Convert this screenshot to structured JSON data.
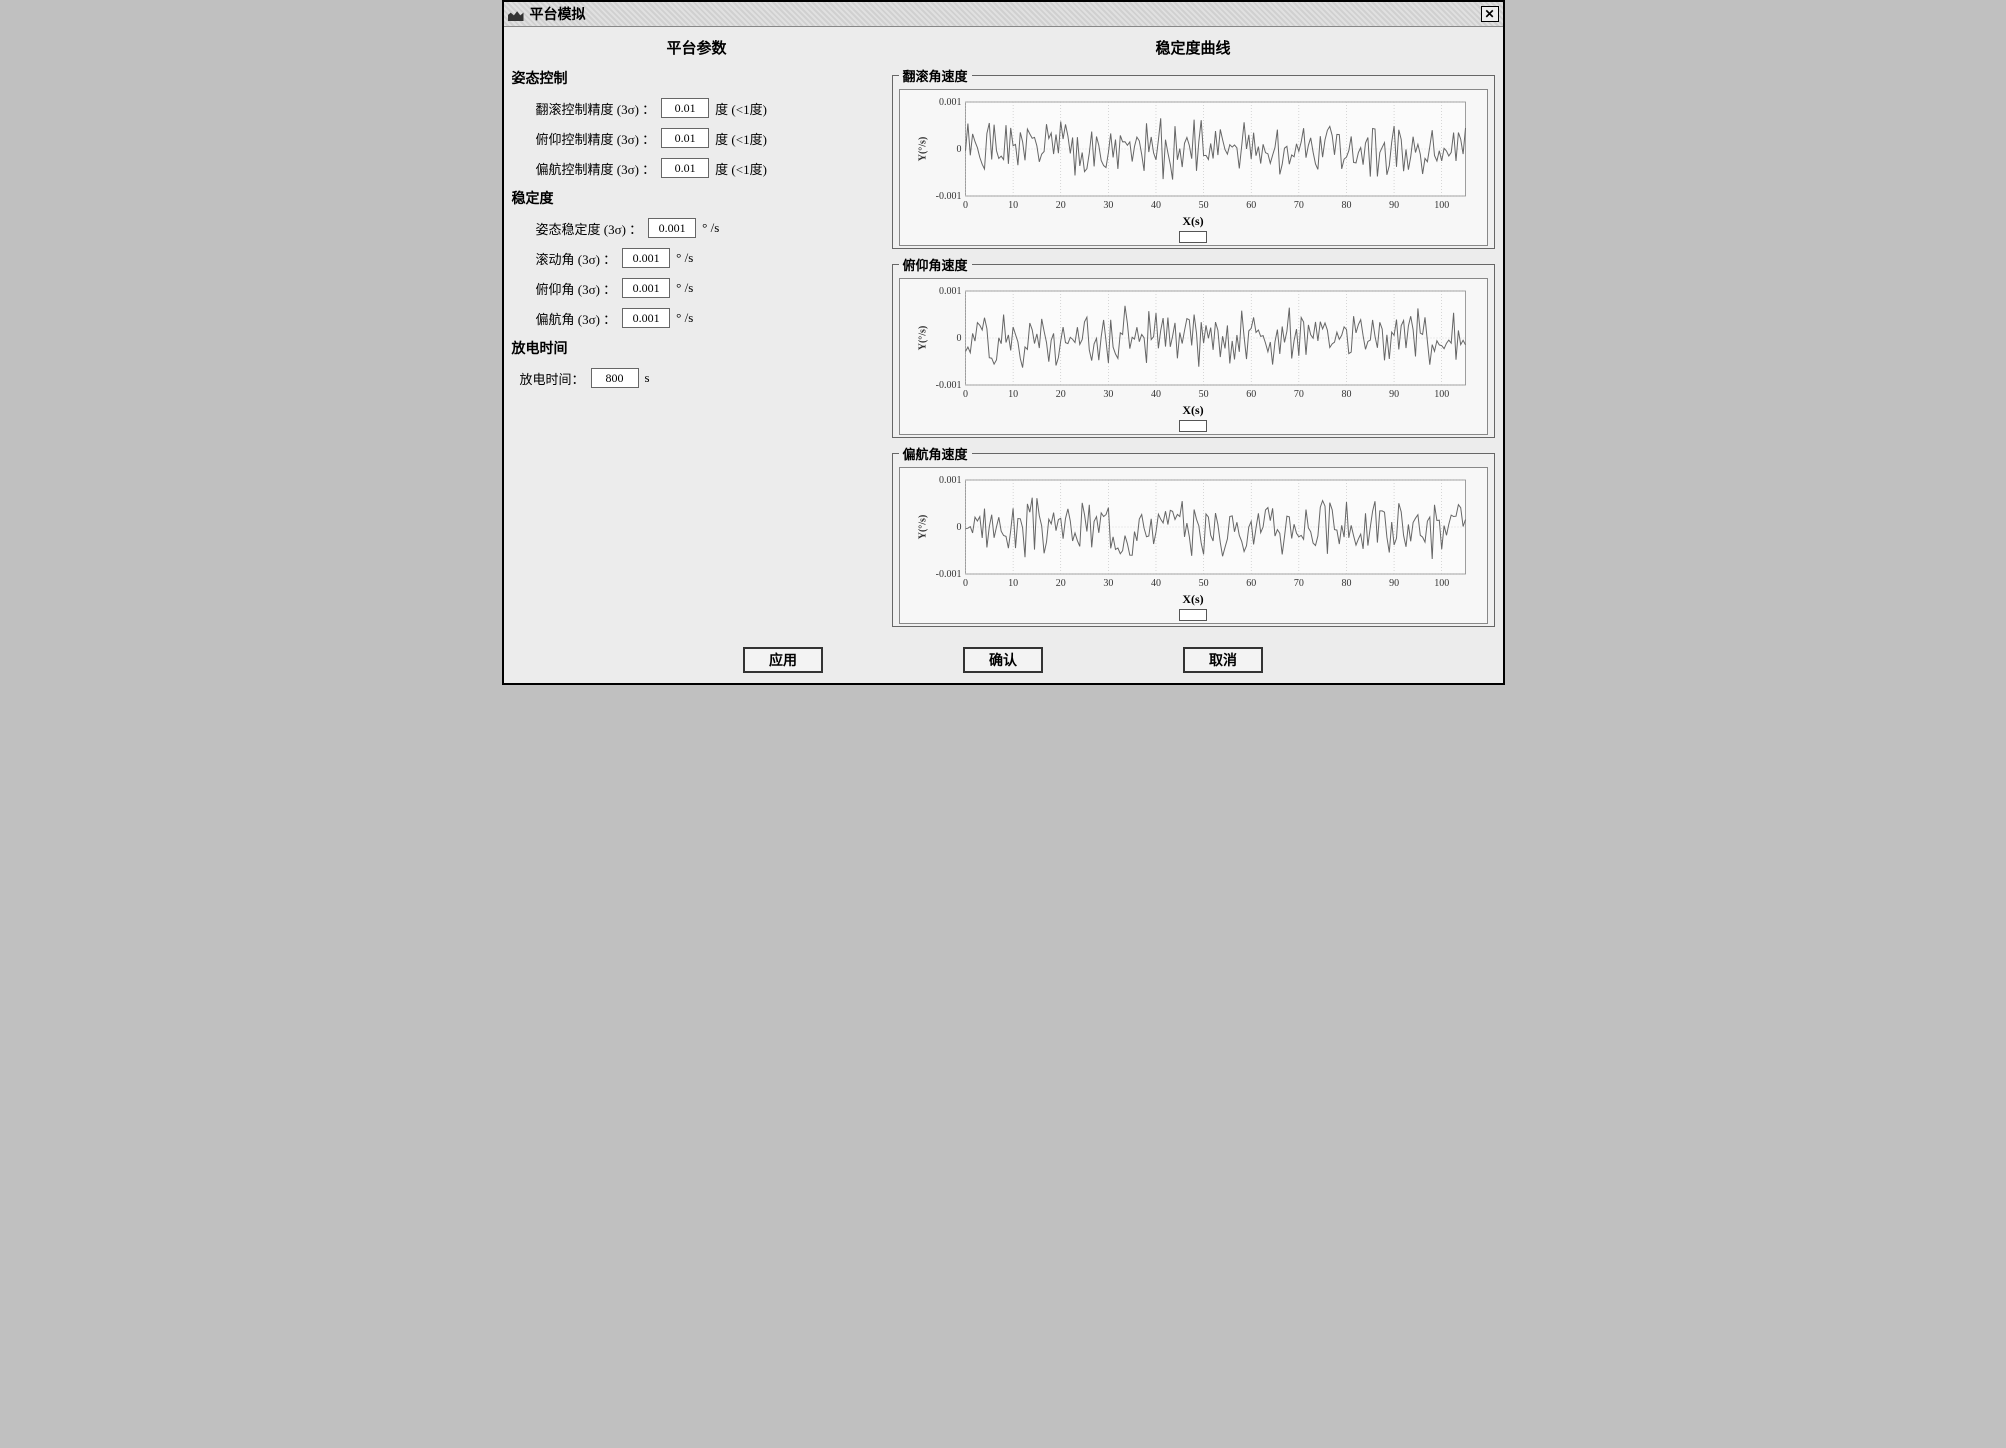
{
  "window": {
    "title": "平台模拟"
  },
  "left": {
    "title": "平台参数",
    "attitude": {
      "heading": "姿态控制",
      "roll": {
        "label": "翻滚控制精度 (3σ) ：",
        "value": "0.01",
        "unit": "度 (<1度)"
      },
      "pitch": {
        "label": "俯仰控制精度 (3σ) ：",
        "value": "0.01",
        "unit": "度 (<1度)"
      },
      "yaw": {
        "label": "偏航控制精度 (3σ) ：",
        "value": "0.01",
        "unit": "度 (<1度)"
      }
    },
    "stability": {
      "heading": "稳定度",
      "att": {
        "label": "姿态稳定度 (3σ) ：",
        "value": "0.001",
        "unit": "° /s"
      },
      "roll": {
        "label": "滚动角 (3σ) ：",
        "value": "0.001",
        "unit": "° /s"
      },
      "pitch": {
        "label": "俯仰角 (3σ) ：",
        "value": "0.001",
        "unit": "° /s"
      },
      "yaw": {
        "label": "偏航角 (3σ) ：",
        "value": "0.001",
        "unit": "° /s"
      }
    },
    "discharge": {
      "heading": "放电时间",
      "time": {
        "label": "放电时间：",
        "value": "800",
        "unit": "s"
      }
    }
  },
  "right": {
    "title": "稳定度曲线",
    "charts": [
      {
        "id": "roll",
        "legend": "翻滚角速度"
      },
      {
        "id": "pitch",
        "legend": "俯仰角速度"
      },
      {
        "id": "yaw",
        "legend": "偏航角速度"
      }
    ],
    "axis": {
      "ylabel": "Y(°/s)",
      "xlabel": "X(s)",
      "ylim": [
        -0.001,
        0.001
      ],
      "yticks": [
        -0.001,
        0,
        0.001
      ],
      "ytick_labels": [
        "-0.001",
        "0",
        "0.001"
      ],
      "xlim": [
        0,
        105
      ],
      "xticks": [
        0,
        10,
        20,
        30,
        40,
        50,
        60,
        70,
        80,
        90,
        100
      ],
      "xtick_labels": [
        "0",
        "10",
        "20",
        "30",
        "40",
        "50",
        "60",
        "70",
        "80",
        "90",
        "100"
      ],
      "grid_color": "#bdbdbd",
      "series_color": "#666666",
      "background_color": "#f7f7f7"
    }
  },
  "buttons": {
    "apply": "应用",
    "ok": "确认",
    "cancel": "取消"
  }
}
